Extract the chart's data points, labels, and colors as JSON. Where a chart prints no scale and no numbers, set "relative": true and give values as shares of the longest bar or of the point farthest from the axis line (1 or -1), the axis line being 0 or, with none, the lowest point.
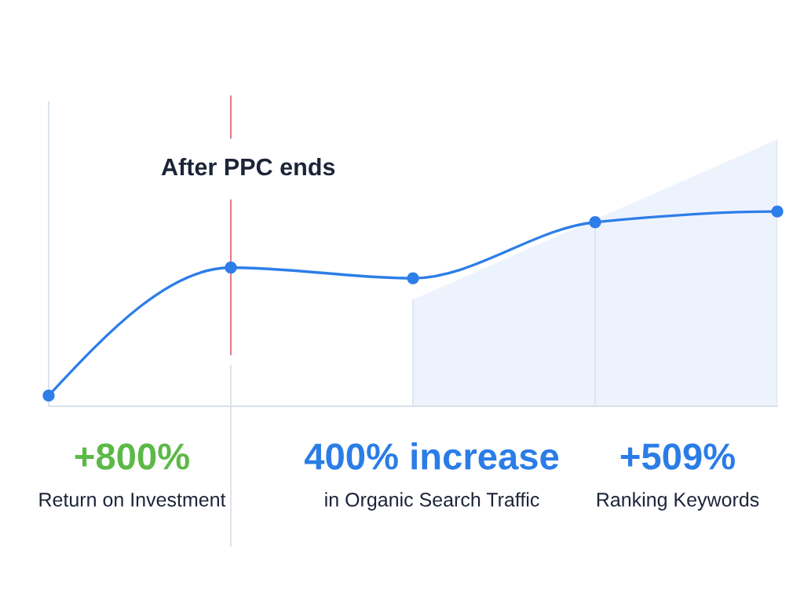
{
  "chart_data": {
    "type": "line",
    "relative": true,
    "categories": [
      null,
      null,
      null,
      null,
      null
    ],
    "series": [
      {
        "type": "area",
        "color": "#edf3fd",
        "values": [
          null,
          null,
          0.4,
          0.7,
          1.0
        ]
      },
      {
        "color": "#2d7ee8",
        "marker": "circle",
        "values": [
          0.04,
          0.52,
          0.48,
          0.69,
          0.73
        ]
      }
    ],
    "line_style": "solid",
    "grid": "x",
    "annotations": [
      "After PPC ends",
      "+800%",
      "Return on Investment",
      "400% increase",
      "in Organic Search Traffic",
      "+509%",
      "Ranking Keywords"
    ]
  }
}
